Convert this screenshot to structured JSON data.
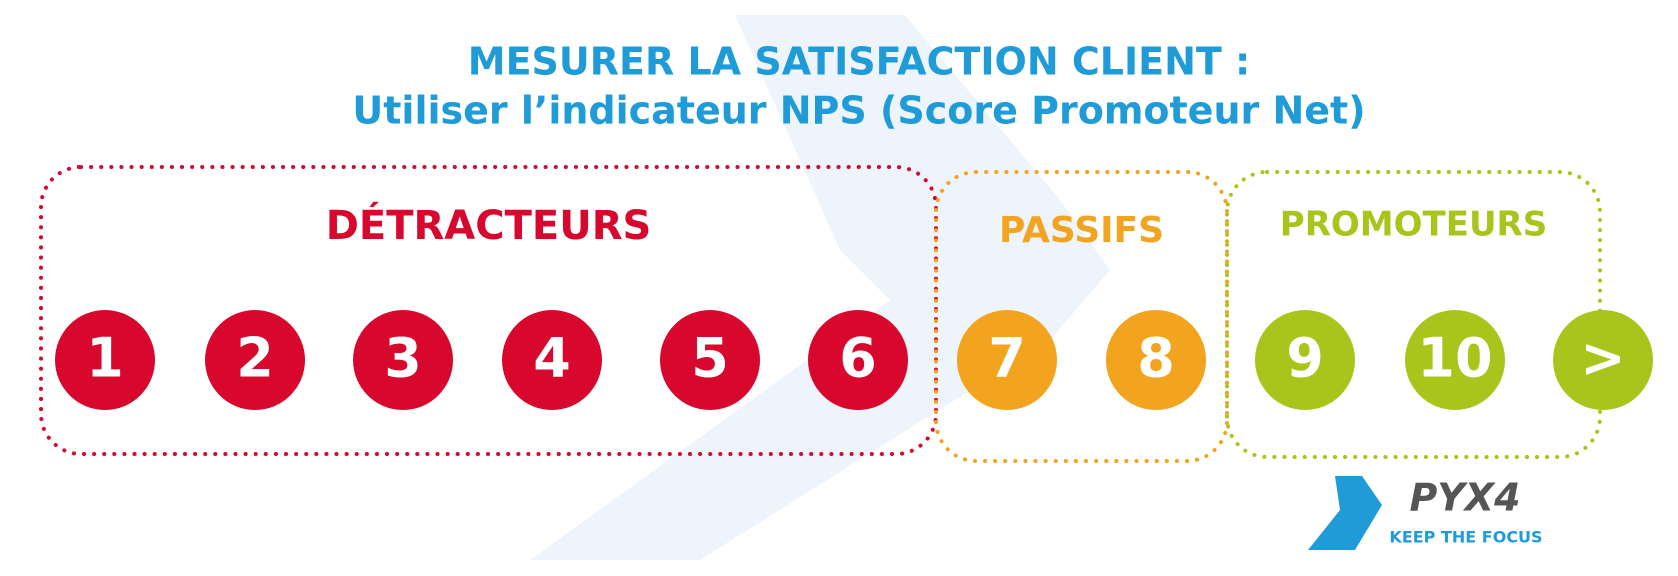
{
  "title": {
    "line1": "MESURER LA SATISFACTION CLIENT :",
    "line2": "Utiliser l’indicateur NPS (Score Promoteur Net)"
  },
  "groups": [
    {
      "label": "DÉTRACTEURS",
      "color": "#d7072d",
      "scores": [
        1,
        2,
        3,
        4,
        5,
        6
      ]
    },
    {
      "label": "PASSIFS",
      "color": "#f2a41e",
      "scores": [
        7,
        8
      ]
    },
    {
      "label": "PROMOTEURS",
      "color": "#a9c51b",
      "scores": [
        9,
        10,
        ">"
      ]
    }
  ],
  "logo": {
    "name": "PYX4",
    "tagline": "KEEP THE FOCUS"
  }
}
